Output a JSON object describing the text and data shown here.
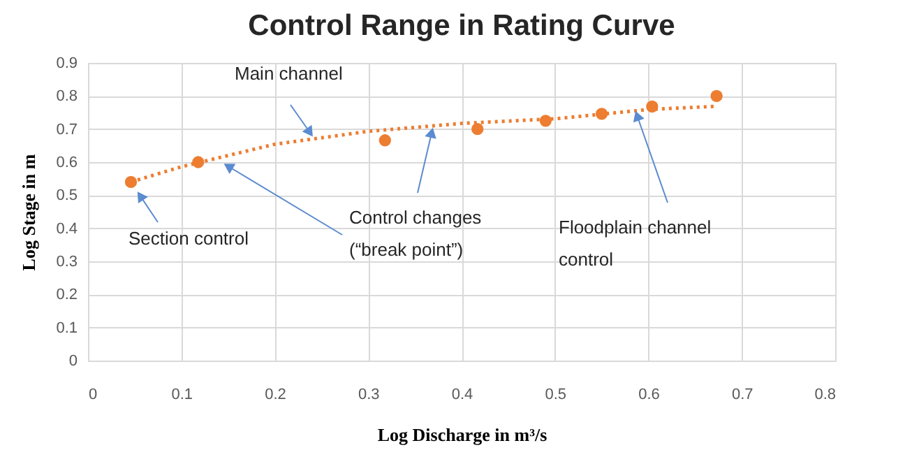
{
  "chart_data": {
    "type": "scatter",
    "title": "Control Range in Rating Curve",
    "xlabel": "Log Discharge in m³/s",
    "ylabel": "Log Stage in m",
    "series": [
      {
        "type": "scatter",
        "color": "#ed7d31",
        "marker": "circle",
        "x": [
          0.046,
          0.118,
          0.318,
          0.417,
          0.49,
          0.55,
          0.604,
          0.673
        ],
        "values": [
          0.54,
          0.6,
          0.666,
          0.7,
          0.725,
          0.746,
          0.768,
          0.8
        ]
      },
      {
        "type": "line",
        "color": "#ed7d31",
        "line_style": "dotted",
        "marker": "none",
        "x": [
          0.046,
          0.1,
          0.2,
          0.3,
          0.4,
          0.5,
          0.6,
          0.673
        ],
        "values": [
          0.54,
          0.586,
          0.654,
          0.693,
          0.717,
          0.731,
          0.759,
          0.769
        ]
      }
    ],
    "xlim": [
      0,
      0.8
    ],
    "xticks": [
      0,
      0.1,
      0.2,
      0.3,
      0.4,
      0.5,
      0.6,
      0.7,
      0.8
    ],
    "ylim": [
      0,
      0.9
    ],
    "yticks": [
      0,
      0.1,
      0.2,
      0.3,
      0.4,
      0.5,
      0.6,
      0.7,
      0.8,
      0.9
    ],
    "grid": true,
    "legend": false,
    "annotations": [
      {
        "text": "Main channel",
        "x": 0.241,
        "y": 0.676
      },
      {
        "text": "Section control",
        "x": 0.046,
        "y": 0.54
      },
      {
        "text": "Control changes\n(“break point”)",
        "x": 0.145,
        "y": 0.596
      },
      {
        "text": "Floodplain channel\ncontrol",
        "x": 0.586,
        "y": 0.756
      }
    ]
  }
}
